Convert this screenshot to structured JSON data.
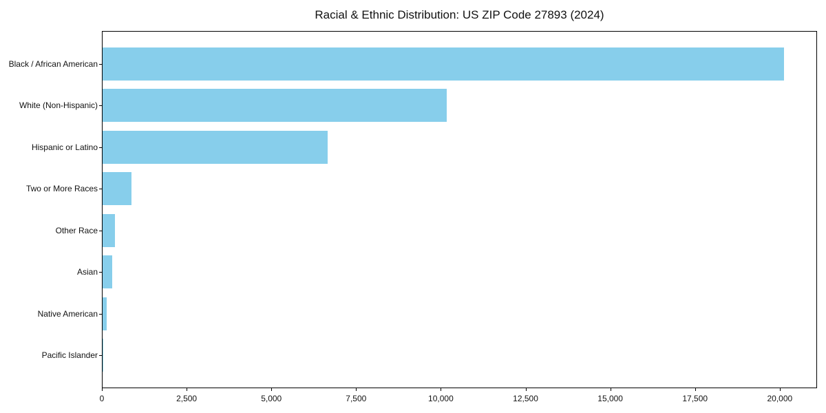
{
  "chart_data": {
    "type": "bar",
    "orientation": "horizontal",
    "title": "Racial & Ethnic Distribution: US ZIP Code 27893 (2024)",
    "categories": [
      "Black / African American",
      "White (Non-Hispanic)",
      "Hispanic or Latino",
      "Two or More Races",
      "Other Race",
      "Asian",
      "Native American",
      "Pacific Islander"
    ],
    "values": [
      20100,
      10150,
      6640,
      850,
      360,
      290,
      120,
      10
    ],
    "xlabel": "",
    "ylabel": "",
    "xlim": [
      0,
      21100
    ],
    "xticks": [
      0,
      2500,
      5000,
      7500,
      10000,
      12500,
      15000,
      17500,
      20000
    ],
    "xtick_labels": [
      "0",
      "2,500",
      "5,000",
      "7,500",
      "10,000",
      "12,500",
      "15,000",
      "17,500",
      "20,000"
    ],
    "bar_color": "#87CEEB",
    "frame_color": "#000000",
    "grid": false,
    "legend": null
  }
}
